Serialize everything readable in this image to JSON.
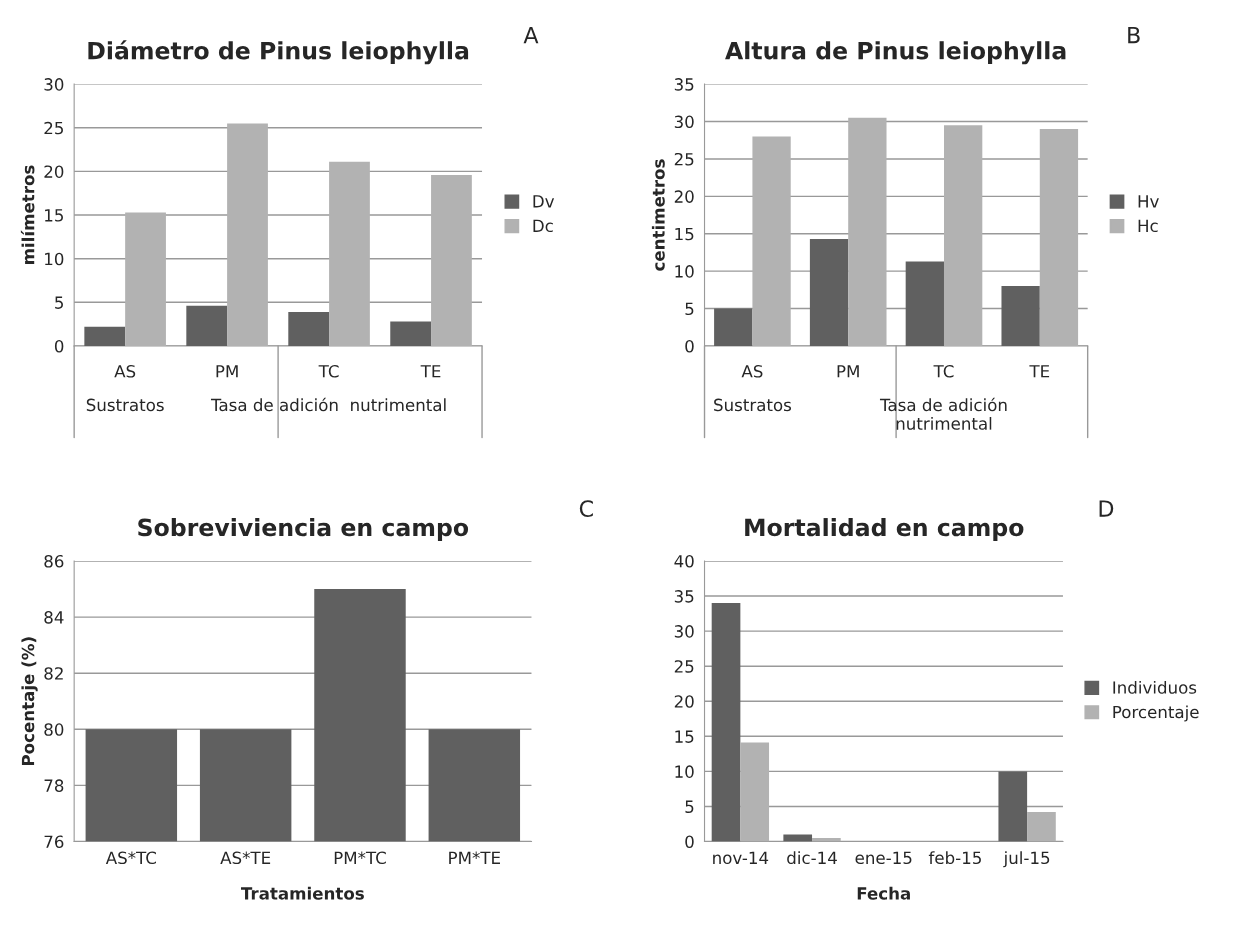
{
  "chart_data": [
    {
      "type": "bar",
      "title": "Diámetro de Pinus leiophylla",
      "ylabel": "milímetros",
      "categories": [
        "AS",
        "PM",
        "TC",
        "TE"
      ],
      "series": [
        {
          "name": "Dv",
          "color": "#606060",
          "values": [
            2.2,
            4.6,
            3.9,
            2.8
          ]
        },
        {
          "name": "Dc",
          "color": "#b2b2b2",
          "values": [
            15.3,
            25.5,
            21.1,
            19.6
          ]
        }
      ],
      "ylim": [
        0,
        30
      ],
      "yticks": [
        0,
        5,
        10,
        15,
        20,
        25,
        30
      ],
      "grid": "y",
      "legend": "right",
      "annotations": [
        "A",
        "Sustratos",
        "Tasa de adición  nutrimental"
      ]
    },
    {
      "type": "bar",
      "title": "Altura de Pinus leiophylla",
      "ylabel": "centimetros",
      "categories": [
        "AS",
        "PM",
        "TC",
        "TE"
      ],
      "series": [
        {
          "name": "Hv",
          "color": "#606060",
          "values": [
            5,
            14.3,
            11.3,
            8
          ]
        },
        {
          "name": "Hc",
          "color": "#b2b2b2",
          "values": [
            28,
            30.5,
            29.5,
            29
          ]
        }
      ],
      "ylim": [
        0,
        35
      ],
      "yticks": [
        0,
        5,
        10,
        15,
        20,
        25,
        30,
        35
      ],
      "grid": "y",
      "legend": "right",
      "annotations": [
        "B",
        "Sustratos",
        "Tasa de adición\nnutrimental"
      ]
    },
    {
      "type": "bar",
      "title": "Sobreviviencia en campo",
      "xlabel": "Tratamientos",
      "ylabel": "Pocentaje (%)",
      "categories": [
        "AS*TC",
        "AS*TE",
        "PM*TC",
        "PM*TE"
      ],
      "series": [
        {
          "color": "#606060",
          "values": [
            80,
            80,
            85,
            80
          ]
        }
      ],
      "ylim": [
        76,
        86
      ],
      "yticks": [
        76,
        78,
        80,
        82,
        84,
        86
      ],
      "grid": "y",
      "annotations": [
        "C"
      ]
    },
    {
      "type": "bar",
      "title": "Mortalidad en campo",
      "xlabel": "Fecha",
      "categories": [
        "nov-14",
        "dic-14",
        "ene-15",
        "feb-15",
        "jul-15"
      ],
      "series": [
        {
          "name": "Individuos",
          "color": "#606060",
          "values": [
            34,
            1,
            0,
            0,
            10
          ]
        },
        {
          "name": "Porcentaje",
          "color": "#b2b2b2",
          "values": [
            14.1,
            0.5,
            0,
            0,
            4.2
          ]
        }
      ],
      "ylim": [
        0,
        40
      ],
      "yticks": [
        0,
        5,
        10,
        15,
        20,
        25,
        30,
        35,
        40
      ],
      "grid": "y",
      "legend": "right",
      "annotations": [
        "D"
      ]
    }
  ]
}
